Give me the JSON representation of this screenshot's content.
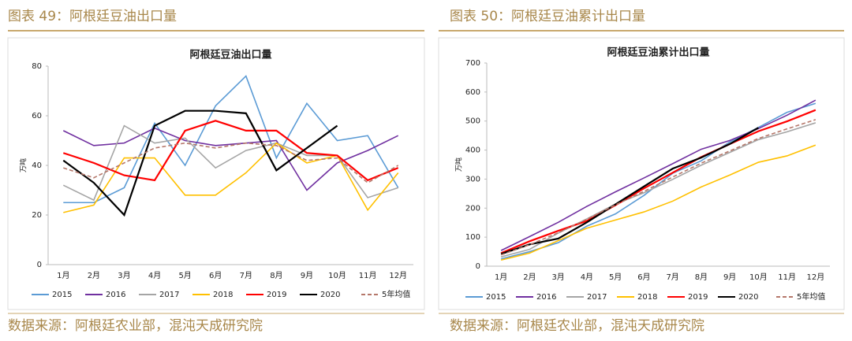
{
  "chart_data": [
    {
      "type": "line",
      "caption": "图表 49：阿根廷豆油出口量",
      "title": "阿根廷豆油出口量",
      "y_label": "万吨",
      "source": "数据来源：阿根廷农业部，混沌天成研究院",
      "categories": [
        "1月",
        "2月",
        "3月",
        "4月",
        "5月",
        "6月",
        "7月",
        "8月",
        "9月",
        "10月",
        "11月",
        "12月"
      ],
      "ylim": [
        0,
        80
      ],
      "yticks": [
        0,
        20,
        40,
        60,
        80
      ],
      "legend": "bottom",
      "series": [
        {
          "name": "2015",
          "color": "#5b9bd5",
          "values": [
            25,
            25,
            31,
            57,
            40,
            64,
            76,
            43,
            65,
            50,
            52,
            31
          ]
        },
        {
          "name": "2016",
          "color": "#7030a0",
          "values": [
            54,
            48,
            49,
            55,
            50,
            48,
            49,
            50,
            30,
            41,
            46,
            52
          ]
        },
        {
          "name": "2017",
          "color": "#a5a5a5",
          "values": [
            32,
            26,
            56,
            49,
            51,
            39,
            46,
            49,
            44,
            44,
            27,
            31
          ]
        },
        {
          "name": "2018",
          "color": "#ffc000",
          "values": [
            21,
            24,
            43,
            43,
            28,
            28,
            37,
            49,
            41,
            44,
            22,
            37
          ]
        },
        {
          "name": "2019",
          "color": "#ff0000",
          "values": [
            45,
            41,
            36,
            34,
            54,
            58,
            54,
            54,
            45,
            44,
            34,
            39
          ]
        },
        {
          "name": "2020",
          "color": "#000000",
          "values": [
            42,
            33,
            20,
            56,
            62,
            62,
            61,
            38,
            47,
            56,
            null,
            null
          ]
        },
        {
          "name": "5年均值",
          "color": "#b5776a",
          "dashed": true,
          "values": [
            39,
            35,
            41,
            47,
            49,
            47,
            49,
            48,
            42,
            43,
            33,
            40
          ]
        }
      ]
    },
    {
      "type": "line",
      "caption": "图表 50：阿根廷豆油累计出口量",
      "title": "阿根廷豆油累计出口量",
      "y_label": "万吨",
      "source": "数据来源：阿根廷农业部，混沌天成研究院",
      "categories": [
        "1月",
        "2月",
        "3月",
        "4月",
        "5月",
        "6月",
        "7月",
        "8月",
        "9月",
        "10月",
        "11月",
        "12月"
      ],
      "ylim": [
        0,
        700
      ],
      "yticks": [
        0,
        100,
        200,
        300,
        400,
        500,
        600,
        700
      ],
      "legend": "bottom",
      "series": [
        {
          "name": "2015",
          "color": "#5b9bd5",
          "values": [
            25,
            50,
            81,
            138,
            180,
            244,
            320,
            363,
            428,
            478,
            530,
            561
          ]
        },
        {
          "name": "2016",
          "color": "#7030a0",
          "values": [
            54,
            102,
            151,
            206,
            256,
            304,
            353,
            403,
            433,
            474,
            520,
            572
          ]
        },
        {
          "name": "2017",
          "color": "#a5a5a5",
          "values": [
            32,
            58,
            114,
            163,
            214,
            253,
            299,
            348,
            392,
            436,
            463,
            494
          ]
        },
        {
          "name": "2018",
          "color": "#ffc000",
          "values": [
            21,
            45,
            88,
            131,
            159,
            187,
            224,
            273,
            314,
            358,
            380,
            417
          ]
        },
        {
          "name": "2019",
          "color": "#ff0000",
          "values": [
            45,
            86,
            122,
            156,
            210,
            268,
            322,
            376,
            421,
            465,
            499,
            538
          ]
        },
        {
          "name": "2020",
          "color": "#000000",
          "values": [
            42,
            75,
            95,
            151,
            213,
            275,
            336,
            374,
            421,
            477,
            null,
            null
          ]
        },
        {
          "name": "5年均值",
          "color": "#b5776a",
          "dashed": true,
          "values": [
            39,
            74,
            115,
            162,
            211,
            258,
            307,
            355,
            397,
            440,
            473,
            505
          ]
        }
      ]
    }
  ]
}
